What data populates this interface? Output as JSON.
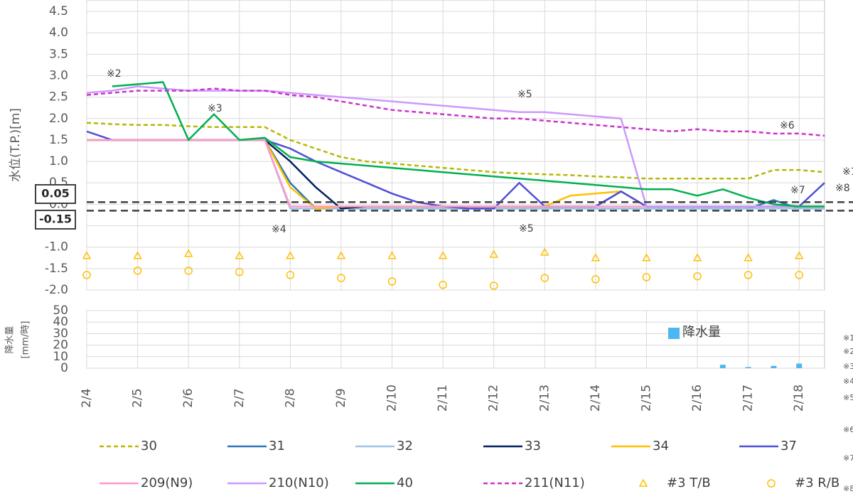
{
  "chart_data": [
    {
      "type": "line",
      "y_label": "水位(T.P.)[m]",
      "ylim": [
        -2.0,
        4.5
      ],
      "yticks": [
        {
          "value": -2.0,
          "label": "-2.0"
        },
        {
          "value": -1.5,
          "label": "-1.5"
        },
        {
          "value": -1.0,
          "label": "-1.0"
        },
        {
          "value": -0.5,
          "label": "-0.5"
        },
        {
          "value": 0.0,
          "label": "0.0"
        },
        {
          "value": 0.5,
          "label": "0.5"
        },
        {
          "value": 1.0,
          "label": "1.0"
        },
        {
          "value": 1.5,
          "label": "1.5"
        },
        {
          "value": 2.0,
          "label": "2.0"
        },
        {
          "value": 2.5,
          "label": "2.5"
        },
        {
          "value": 3.0,
          "label": "3.0"
        },
        {
          "value": 3.5,
          "label": "3.5"
        },
        {
          "value": 4.0,
          "label": "4.0"
        },
        {
          "value": 4.5,
          "label": "4.5"
        }
      ],
      "grid": true,
      "ref_lines": [
        {
          "value": 0.05,
          "label": "0.05"
        },
        {
          "value": -0.15,
          "label": "-0.15"
        }
      ],
      "annotations": [
        "※2",
        "※3",
        "※4",
        "※5",
        "※5",
        "※6",
        "※7",
        "※8",
        "※1"
      ],
      "series": [
        {
          "name": "30",
          "color": "#b4b800",
          "dash": true,
          "values": [
            1.9,
            1.87,
            1.85,
            1.85,
            1.82,
            1.8,
            1.8,
            1.8,
            1.5,
            1.3,
            1.1,
            1.0,
            0.95,
            0.9,
            0.85,
            0.8,
            0.75,
            0.72,
            0.7,
            0.68,
            0.65,
            0.63,
            0.6,
            0.6,
            0.6,
            0.6,
            0.6,
            0.8,
            0.8,
            0.75
          ]
        },
        {
          "name": "31",
          "color": "#2e75b6",
          "values": [
            1.5,
            1.5,
            1.5,
            1.5,
            1.5,
            1.5,
            1.5,
            1.5,
            0.5,
            -0.1,
            -0.1,
            -0.1,
            -0.1,
            -0.1,
            -0.1,
            -0.1,
            -0.1,
            -0.1,
            -0.1,
            -0.1,
            -0.1,
            -0.1,
            -0.1,
            -0.1,
            -0.1,
            -0.1,
            -0.1,
            0.1,
            -0.1,
            -0.1
          ]
        },
        {
          "name": "32",
          "color": "#9dc3e6",
          "values": [
            1.5,
            1.5,
            1.5,
            1.5,
            1.5,
            1.5,
            1.5,
            1.5,
            -0.1,
            -0.1,
            -0.1,
            -0.1,
            -0.1,
            -0.1,
            -0.1,
            -0.1,
            -0.1,
            -0.1,
            -0.1,
            -0.1,
            -0.1,
            -0.1,
            -0.1,
            -0.1,
            -0.1,
            -0.1,
            -0.1,
            -0.1,
            -0.1,
            -0.1
          ]
        },
        {
          "name": "33",
          "color": "#002060",
          "values": [
            1.5,
            1.5,
            1.5,
            1.5,
            1.5,
            1.5,
            1.5,
            1.5,
            1.0,
            0.4,
            -0.1,
            -0.05,
            -0.05,
            -0.05,
            -0.05,
            -0.05,
            -0.05,
            -0.05,
            -0.05,
            -0.05,
            -0.05,
            0.3,
            -0.05,
            -0.05,
            -0.05,
            -0.05,
            -0.05,
            -0.05,
            -0.05,
            -0.05
          ]
        },
        {
          "name": "34",
          "color": "#ffc000",
          "values": [
            1.5,
            1.5,
            1.5,
            1.5,
            1.5,
            1.5,
            1.5,
            1.5,
            0.4,
            -0.1,
            -0.05,
            -0.05,
            -0.05,
            -0.05,
            -0.05,
            -0.05,
            -0.05,
            -0.05,
            -0.05,
            0.2,
            0.25,
            0.3,
            -0.05,
            -0.05,
            -0.05,
            -0.05,
            -0.05,
            -0.05,
            -0.05,
            -0.05
          ]
        },
        {
          "name": "37",
          "color": "#4f4fd9",
          "values": [
            1.7,
            1.5,
            1.5,
            1.5,
            1.5,
            1.5,
            1.5,
            1.5,
            1.3,
            1.0,
            0.75,
            0.5,
            0.25,
            0.05,
            -0.05,
            -0.1,
            -0.1,
            0.5,
            -0.05,
            -0.05,
            -0.05,
            0.3,
            -0.05,
            -0.05,
            -0.05,
            -0.05,
            -0.05,
            -0.05,
            -0.05,
            0.5
          ]
        },
        {
          "name": "209(N9)",
          "color": "#ff99cc",
          "values": [
            1.5,
            1.5,
            1.5,
            1.5,
            1.5,
            1.5,
            1.5,
            1.5,
            -0.05,
            -0.05,
            -0.05,
            -0.05,
            -0.05,
            -0.05,
            -0.05,
            -0.05,
            -0.05,
            -0.05,
            -0.05,
            -0.05,
            -0.05,
            -0.05,
            -0.05,
            -0.05,
            -0.05,
            -0.05,
            -0.05,
            -0.05,
            -0.05,
            -0.05
          ]
        },
        {
          "name": "210(N10)",
          "color": "#cc99ff",
          "values": [
            2.6,
            2.65,
            2.75,
            2.7,
            2.65,
            2.65,
            2.65,
            2.65,
            2.6,
            2.55,
            2.5,
            2.45,
            2.4,
            2.35,
            2.3,
            2.25,
            2.2,
            2.15,
            2.15,
            2.1,
            2.05,
            2.0,
            -0.05,
            -0.05,
            -0.05,
            -0.05,
            -0.05,
            -0.05,
            -0.05,
            -0.05
          ]
        },
        {
          "name": "40",
          "color": "#00b050",
          "values": [
            null,
            2.75,
            2.8,
            2.85,
            1.5,
            2.1,
            1.5,
            1.55,
            1.1,
            1.0,
            0.95,
            0.9,
            0.85,
            0.8,
            0.75,
            0.7,
            0.65,
            0.6,
            0.55,
            0.5,
            0.45,
            0.4,
            0.35,
            0.35,
            0.2,
            0.35,
            0.15,
            0.0,
            -0.05,
            -0.05
          ]
        },
        {
          "name": "211(N11)",
          "color": "#cc33cc",
          "dash": true,
          "values": [
            2.55,
            2.6,
            2.65,
            2.65,
            2.65,
            2.7,
            2.65,
            2.65,
            2.55,
            2.5,
            2.4,
            2.3,
            2.2,
            2.15,
            2.1,
            2.05,
            2.0,
            2.0,
            1.95,
            1.9,
            1.85,
            1.8,
            1.75,
            1.7,
            1.75,
            1.7,
            1.7,
            1.65,
            1.65,
            1.6
          ]
        },
        {
          "name": "#3 T/B",
          "color": "#ffc000",
          "marker": "triangle",
          "values": [
            -1.2,
            null,
            -1.2,
            null,
            -1.15,
            null,
            -1.2,
            null,
            -1.2,
            null,
            -1.2,
            null,
            -1.2,
            null,
            -1.2,
            null,
            -1.17,
            null,
            -1.12,
            null,
            -1.25,
            null,
            -1.25,
            null,
            -1.25,
            null,
            -1.25,
            null,
            -1.2,
            null
          ]
        },
        {
          "name": "#3 R/B",
          "color": "#ffc000",
          "marker": "circle",
          "values": [
            -1.65,
            null,
            -1.55,
            null,
            -1.55,
            null,
            -1.58,
            null,
            -1.65,
            null,
            -1.72,
            null,
            -1.8,
            null,
            -1.88,
            null,
            -1.9,
            null,
            -1.72,
            null,
            -1.75,
            null,
            -1.7,
            null,
            -1.68,
            null,
            -1.65,
            null,
            -1.65,
            null
          ]
        }
      ]
    },
    {
      "type": "bar",
      "y_label": [
        "降水量",
        "[mm/時]"
      ],
      "categories": [
        "2/4",
        null,
        "2/5",
        null,
        "2/6",
        null,
        "2/7",
        null,
        "2/8",
        null,
        "2/9",
        null,
        "2/10",
        null,
        "2/11",
        null,
        "2/12",
        null,
        "2/13",
        null,
        "2/14",
        null,
        "2/15",
        null,
        "2/16",
        null,
        "2/17",
        null,
        "2/18",
        null
      ],
      "series": [
        {
          "name": "降水量",
          "color": "#4db8f0",
          "values": [
            0,
            0,
            0,
            0,
            0,
            0,
            0,
            0,
            0,
            0,
            0,
            0,
            0,
            0,
            0,
            0,
            0,
            0,
            0,
            0,
            0,
            0,
            0,
            0,
            0,
            3,
            1,
            2,
            4,
            0
          ]
        }
      ],
      "ylim": [
        0,
        50
      ],
      "yticks": [
        0,
        10,
        20,
        30,
        40,
        50
      ],
      "grid": true,
      "notes": [
        "※1",
        "※2",
        "※3",
        "※4",
        "※5",
        "※6",
        "※7",
        "※8"
      ]
    }
  ]
}
